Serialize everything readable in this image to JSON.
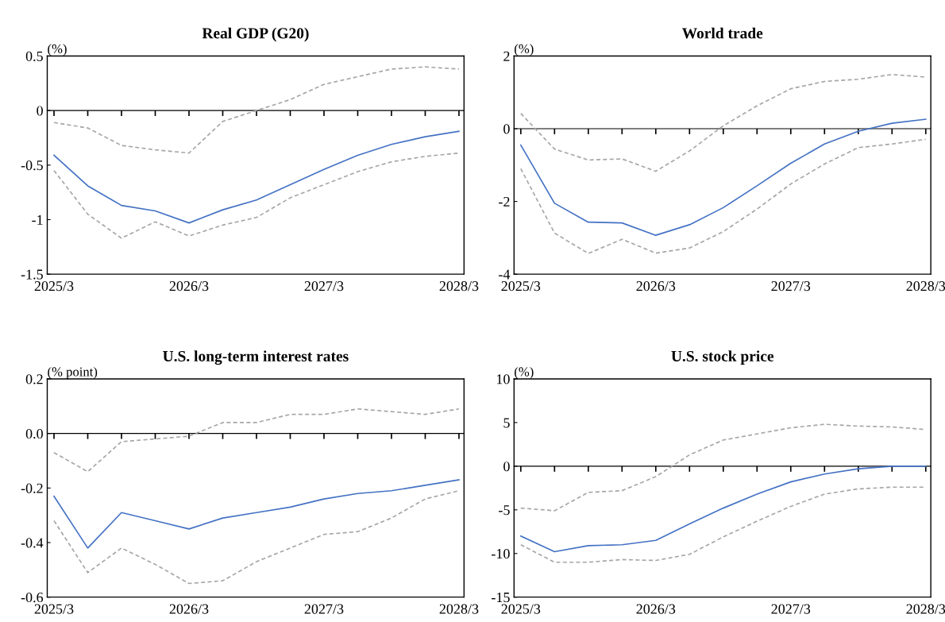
{
  "chart_data": [
    {
      "type": "line",
      "title": "Real GDP (G20)",
      "ylabel": "(%)",
      "categories": [
        "2025/3",
        null,
        null,
        null,
        "2026/3",
        null,
        null,
        null,
        "2027/3",
        null,
        null,
        null,
        "2028/3"
      ],
      "ylim": [
        -1.5,
        0.5
      ],
      "yticks": [
        0.5,
        0,
        -0.5,
        -1,
        -1.5
      ],
      "legend": false,
      "series": [
        {
          "color": "#a6a6a6",
          "line_style": "dashed",
          "values": [
            -0.11,
            -0.16,
            -0.32,
            -0.36,
            -0.39,
            -0.1,
            0.0,
            0.1,
            0.24,
            0.31,
            0.38,
            0.4,
            0.38
          ]
        },
        {
          "color": "#a6a6a6",
          "line_style": "dashed",
          "values": [
            -0.55,
            -0.95,
            -1.17,
            -1.02,
            -1.15,
            -1.05,
            -0.98,
            -0.8,
            -0.68,
            -0.56,
            -0.47,
            -0.42,
            -0.39
          ]
        },
        {
          "color": "#4472c4",
          "line_style": "solid",
          "values": [
            -0.41,
            -0.69,
            -0.87,
            -0.92,
            -1.03,
            -0.91,
            -0.82,
            -0.68,
            -0.54,
            -0.41,
            -0.31,
            -0.24,
            -0.19
          ]
        }
      ]
    },
    {
      "type": "line",
      "title": "World trade",
      "ylabel": "(%)",
      "categories": [
        "2025/3",
        null,
        null,
        null,
        "2026/3",
        null,
        null,
        null,
        "2027/3",
        null,
        null,
        null,
        "2028/3"
      ],
      "ylim": [
        -4,
        2
      ],
      "yticks": [
        2,
        0,
        -2,
        -4
      ],
      "legend": false,
      "series": [
        {
          "color": "#a6a6a6",
          "line_style": "dashed",
          "values": [
            0.42,
            -0.56,
            -0.86,
            -0.83,
            -1.17,
            -0.61,
            0.08,
            0.63,
            1.1,
            1.3,
            1.36,
            1.49,
            1.42
          ]
        },
        {
          "color": "#a6a6a6",
          "line_style": "dashed",
          "values": [
            -1.1,
            -2.87,
            -3.43,
            -3.04,
            -3.42,
            -3.28,
            -2.83,
            -2.21,
            -1.52,
            -0.97,
            -0.52,
            -0.42,
            -0.29
          ]
        },
        {
          "color": "#4472c4",
          "line_style": "solid",
          "values": [
            -0.45,
            -2.05,
            -2.57,
            -2.59,
            -2.93,
            -2.64,
            -2.17,
            -1.57,
            -0.95,
            -0.42,
            -0.07,
            0.15,
            0.26
          ]
        }
      ]
    },
    {
      "type": "line",
      "title": "U.S. long-term interest rates",
      "ylabel": "(% point)",
      "categories": [
        "2025/3",
        null,
        null,
        null,
        "2026/3",
        null,
        null,
        null,
        "2027/3",
        null,
        null,
        null,
        "2028/3"
      ],
      "ylim": [
        -0.6,
        0.2
      ],
      "yticks": [
        0.2,
        {
          "value": 0,
          "label": "0.0"
        },
        -0.2,
        -0.4,
        -0.6
      ],
      "legend": false,
      "series": [
        {
          "color": "#a6a6a6",
          "line_style": "dashed",
          "values": [
            -0.07,
            -0.14,
            -0.03,
            -0.02,
            -0.01,
            0.04,
            0.04,
            0.07,
            0.07,
            0.09,
            0.08,
            0.07,
            0.09
          ]
        },
        {
          "color": "#a6a6a6",
          "line_style": "dashed",
          "values": [
            -0.32,
            -0.51,
            -0.42,
            -0.48,
            -0.55,
            -0.54,
            -0.47,
            -0.42,
            -0.37,
            -0.36,
            -0.31,
            -0.24,
            -0.21
          ]
        },
        {
          "color": "#4472c4",
          "line_style": "solid",
          "values": [
            -0.23,
            -0.42,
            -0.29,
            -0.32,
            -0.35,
            -0.31,
            -0.29,
            -0.27,
            -0.24,
            -0.22,
            -0.21,
            -0.19,
            -0.17
          ]
        }
      ]
    },
    {
      "type": "line",
      "title": "U.S. stock price",
      "ylabel": "(%)",
      "categories": [
        "2025/3",
        null,
        null,
        null,
        "2026/3",
        null,
        null,
        null,
        "2027/3",
        null,
        null,
        null,
        "2028/3"
      ],
      "ylim": [
        -15,
        10
      ],
      "yticks": [
        10,
        5,
        0,
        -5,
        -10,
        -15
      ],
      "legend": false,
      "series": [
        {
          "color": "#a6a6a6",
          "line_style": "dashed",
          "values": [
            -4.8,
            -5.1,
            -3.0,
            -2.8,
            -1.2,
            1.3,
            3.0,
            3.7,
            4.4,
            4.8,
            4.6,
            4.5,
            4.2
          ]
        },
        {
          "color": "#a6a6a6",
          "line_style": "dashed",
          "values": [
            -9.0,
            -11.0,
            -11.0,
            -10.7,
            -10.8,
            -10.1,
            -8.1,
            -6.3,
            -4.6,
            -3.2,
            -2.6,
            -2.4,
            -2.4
          ]
        },
        {
          "color": "#4472c4",
          "line_style": "solid",
          "values": [
            -8.0,
            -9.8,
            -9.1,
            -9.0,
            -8.5,
            -6.6,
            -4.8,
            -3.2,
            -1.8,
            -0.9,
            -0.3,
            0.0,
            0.0
          ]
        }
      ]
    }
  ]
}
